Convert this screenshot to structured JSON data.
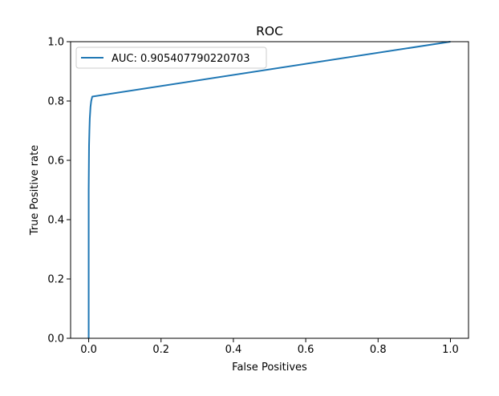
{
  "chart_data": {
    "type": "line",
    "title": "ROC",
    "xlabel": "False Positives",
    "ylabel": "True Positive rate",
    "xlim": [
      -0.05,
      1.05
    ],
    "ylim": [
      0.0,
      1.0
    ],
    "xticks": [
      0.0,
      0.2,
      0.4,
      0.6,
      0.8,
      1.0
    ],
    "xtick_labels": [
      "0.0",
      "0.2",
      "0.4",
      "0.6",
      "0.8",
      "1.0"
    ],
    "yticks": [
      0.0,
      0.2,
      0.4,
      0.6,
      0.8,
      1.0
    ],
    "ytick_labels": [
      "0.0",
      "0.2",
      "0.4",
      "0.6",
      "0.8",
      "1.0"
    ],
    "grid": false,
    "legend_position": "top-left",
    "series": [
      {
        "name": "AUC: 0.905407790220703",
        "color": "#1f77b4",
        "x": [
          0.0,
          0.0,
          0.001,
          0.002,
          0.003,
          0.005,
          0.007,
          0.01,
          1.0
        ],
        "y": [
          0.0,
          0.5,
          0.65,
          0.7,
          0.74,
          0.78,
          0.8,
          0.815,
          1.0
        ]
      }
    ]
  }
}
